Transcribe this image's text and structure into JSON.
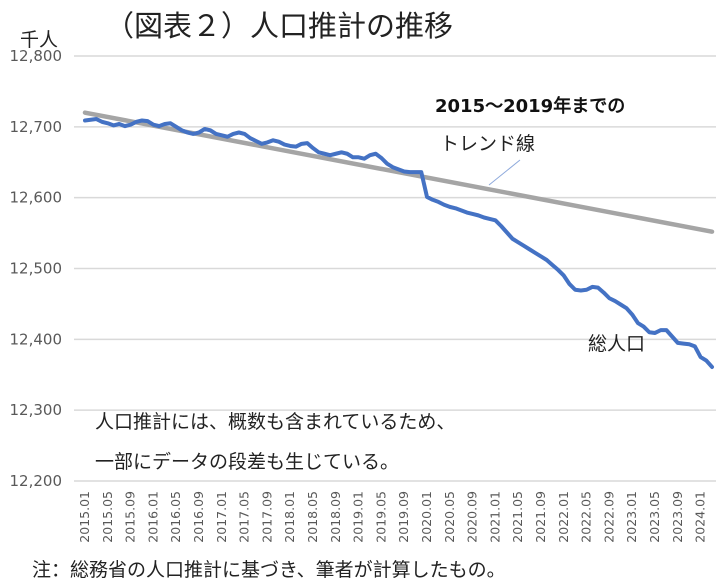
{
  "chart_data": {
    "type": "line",
    "title": "（図表２）人口推計の推移",
    "ylabel": "千人",
    "ylim": [
      12200,
      12800
    ],
    "yticks": [
      12200,
      12300,
      12400,
      12500,
      12600,
      12700,
      12800
    ],
    "ytick_labels": [
      "12,200",
      "12,300",
      "12,400",
      "12,500",
      "12,600",
      "12,700",
      "12,800"
    ],
    "grid": true,
    "x_start": "2015.01",
    "x_end": "2024.03",
    "xtick_labels": [
      "2015.01",
      "2015.05",
      "2015.09",
      "2016.01",
      "2016.05",
      "2016.09",
      "2017.01",
      "2017.05",
      "2017.09",
      "2018.01",
      "2018.05",
      "2018.09",
      "2019.01",
      "2019.05",
      "2019.09",
      "2020.01",
      "2020.05",
      "2020.09",
      "2021.01",
      "2021.05",
      "2021.09",
      "2022.01",
      "2022.05",
      "2022.09",
      "2023.01",
      "2023.05",
      "2023.09",
      "2024.01"
    ],
    "series": [
      {
        "name": "総人口",
        "color": "#4472C4",
        "values": [
          12709,
          12710,
          12711,
          12707,
          12705,
          12702,
          12704,
          12701,
          12703,
          12707,
          12709,
          12708,
          12703,
          12701,
          12704,
          12705,
          12700,
          12695,
          12692,
          12690,
          12692,
          12697,
          12695,
          12690,
          12688,
          12686,
          12690,
          12692,
          12690,
          12684,
          12680,
          12676,
          12678,
          12681,
          12679,
          12675,
          12673,
          12672,
          12676,
          12677,
          12670,
          12664,
          12662,
          12660,
          12662,
          12664,
          12662,
          12657,
          12657,
          12655,
          12660,
          12662,
          12656,
          12648,
          12643,
          12640,
          12637,
          12636,
          12636,
          12636,
          12601,
          12597,
          12594,
          12590,
          12587,
          12585,
          12582,
          12579,
          12577,
          12575,
          12572,
          12570,
          12568,
          12560,
          12551,
          12542,
          12537,
          12532,
          12527,
          12522,
          12517,
          12512,
          12505,
          12498,
          12490,
          12478,
          12470,
          12469,
          12470,
          12474,
          12473,
          12466,
          12458,
          12454,
          12449,
          12444,
          12435,
          12423,
          12418,
          12410,
          12409,
          12413,
          12413,
          12404,
          12395,
          12394,
          12393,
          12390,
          12375,
          12370,
          12361
        ]
      },
      {
        "name": "2015～2019年までのトレンド線",
        "color": "#A5A5A5",
        "type": "linear-trend",
        "start_value": 12720,
        "end_value": 12552
      }
    ],
    "annotations": {
      "trend_line1": "2015～2019年までの",
      "trend_line2": "トレンド線",
      "total": "総人口",
      "note1": "人口推計には、概数も含まれているため、",
      "note2": "一部にデータの段差も生じている。"
    },
    "footnote": "注：総務省の人口推計に基づき、筆者が計算したもの。"
  }
}
